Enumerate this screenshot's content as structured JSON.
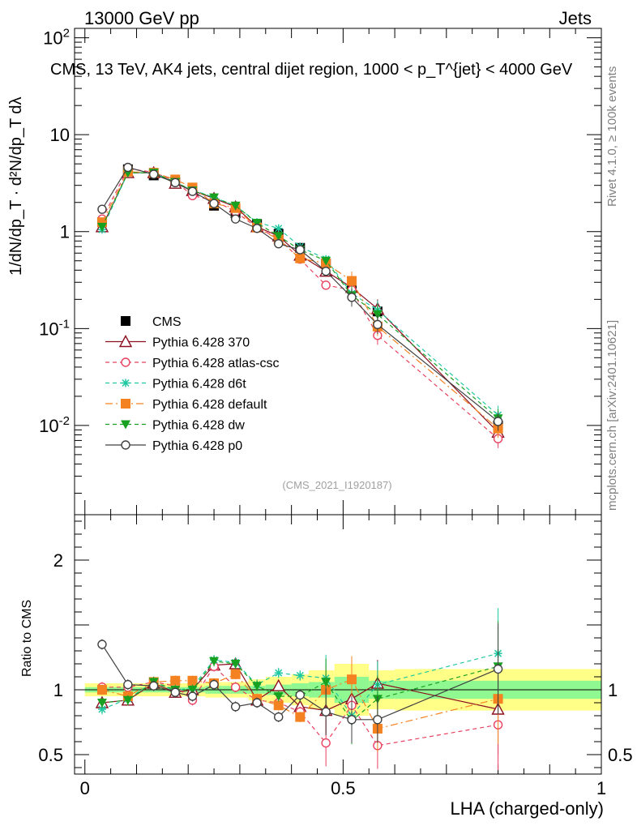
{
  "header": {
    "left": "13000 GeV pp",
    "right": "Jets"
  },
  "side_texts": {
    "rivet": "Rivet 4.1.0, ≥ 100k events",
    "mcplots": "mcplots.cern.ch [arXiv:2401.10621]"
  },
  "analysis_label": "(CMS_2021_I1920187)",
  "colors": {
    "CMS": "#000000",
    "370": "#8b0f1f",
    "atlas": "#e8405f",
    "d6t": "#1ec8a0",
    "default": "#f58220",
    "dw": "#18a020",
    "p0": "#404040",
    "band_yellow": "#ffff88",
    "band_green": "#90f890"
  },
  "chart_data": [
    {
      "type": "scatter",
      "title": "CMS, 13 TeV, AK4 jets, central dijet region, 1000 < p_T^{jet} < 4000 GeV",
      "ylabel": "1/dN/dp_T · d²N/dp_T dλ",
      "yscale": "log",
      "ylim": [
        0.0012,
        125
      ],
      "xlim": [
        -0.02,
        1.0
      ],
      "y_tick_labels": [
        "10^-2",
        "10^-1",
        "1",
        "10",
        "10^2"
      ],
      "x": [
        0.0333,
        0.0833,
        0.1333,
        0.175,
        0.2083,
        0.25,
        0.2917,
        0.3333,
        0.375,
        0.4167,
        0.4667,
        0.5167,
        0.5667,
        0.8
      ],
      "series": [
        {
          "name": "CMS",
          "key": "CMS",
          "marker": "square",
          "values": [
            1.25,
            4.4,
            3.8,
            3.25,
            2.65,
            1.85,
            1.55,
            1.2,
            0.95,
            0.68,
            0.47,
            0.29,
            0.15,
            0.01
          ]
        },
        {
          "name": "Pythia 6.428 370",
          "key": "370",
          "marker": "triangle",
          "dash": "",
          "values": [
            1.12,
            4.05,
            4.05,
            3.15,
            2.65,
            2.2,
            1.8,
            1.12,
            0.9,
            0.57,
            0.39,
            0.265,
            0.16,
            0.0085
          ]
        },
        {
          "name": "Pythia 6.428 atlas-csc",
          "key": "atlas",
          "marker": "circle",
          "dash": "5,4",
          "values": [
            1.35,
            4.45,
            4.1,
            3.3,
            2.35,
            2.1,
            1.6,
            1.1,
            0.85,
            0.52,
            0.28,
            0.25,
            0.085,
            0.0073
          ]
        },
        {
          "name": "Pythia 6.428 d6t",
          "key": "d6t",
          "marker": "star",
          "dash": "5,4",
          "values": [
            1.05,
            4.05,
            4.05,
            3.2,
            2.7,
            2.25,
            1.85,
            1.25,
            1.08,
            0.7,
            0.52,
            0.23,
            0.155,
            0.0128
          ]
        },
        {
          "name": "Pythia 6.428 default",
          "key": "default",
          "marker": "square",
          "dash": "9,4,2,4",
          "values": [
            1.25,
            4.15,
            4.05,
            3.45,
            2.85,
            1.95,
            1.75,
            1.1,
            0.83,
            0.53,
            0.47,
            0.31,
            0.105,
            0.0093
          ]
        },
        {
          "name": "Pythia 6.428 dw",
          "key": "dw",
          "marker": "triangle-down",
          "dash": "5,4",
          "values": [
            1.12,
            4.05,
            4.05,
            3.25,
            2.65,
            2.25,
            1.85,
            1.23,
            0.9,
            0.65,
            0.5,
            0.22,
            0.14,
            0.0118
          ]
        },
        {
          "name": "Pythia 6.428 p0",
          "key": "p0",
          "marker": "circle",
          "dash": "",
          "values": [
            1.7,
            4.6,
            3.9,
            3.2,
            2.6,
            1.95,
            1.35,
            1.08,
            0.75,
            0.65,
            0.39,
            0.21,
            0.11,
            0.011
          ]
        }
      ]
    },
    {
      "type": "scatter",
      "title": "Ratio to CMS",
      "xlabel": "LHA (charged-only)",
      "ylabel": "Ratio to CMS",
      "ylim": [
        0.35,
        2.35
      ],
      "y_tick_labels": [
        "0.5",
        "1",
        "2"
      ],
      "x_tick_labels": [
        "0",
        "0.5",
        "1"
      ],
      "xlim": [
        -0.02,
        1.0
      ],
      "bins": [
        [
          0.0,
          0.0667
        ],
        [
          0.0667,
          0.1
        ],
        [
          0.1,
          0.1667
        ],
        [
          0.1667,
          0.1833
        ],
        [
          0.1833,
          0.2333
        ],
        [
          0.2333,
          0.2667
        ],
        [
          0.2667,
          0.3167
        ],
        [
          0.3167,
          0.35
        ],
        [
          0.35,
          0.4
        ],
        [
          0.4,
          0.4333
        ],
        [
          0.4333,
          0.4833
        ],
        [
          0.4833,
          0.55
        ],
        [
          0.55,
          0.6
        ],
        [
          0.6,
          1.0
        ]
      ],
      "band_yellow": [
        0.05,
        0.05,
        0.05,
        0.05,
        0.05,
        0.06,
        0.06,
        0.08,
        0.1,
        0.12,
        0.15,
        0.2,
        0.15,
        0.16
      ],
      "band_green": [
        0.02,
        0.02,
        0.02,
        0.02,
        0.02,
        0.03,
        0.03,
        0.03,
        0.04,
        0.05,
        0.06,
        0.1,
        0.07,
        0.07
      ],
      "x": [
        0.0333,
        0.0833,
        0.1333,
        0.175,
        0.2083,
        0.25,
        0.2917,
        0.3333,
        0.375,
        0.4167,
        0.4667,
        0.5167,
        0.5667,
        0.8
      ],
      "series": [
        {
          "name": "Pythia 6.428 370",
          "key": "370",
          "marker": "triangle",
          "dash": "",
          "values": [
            0.9,
            0.92,
            1.05,
            0.98,
            1.0,
            1.19,
            1.2,
            0.92,
            1.03,
            0.87,
            0.84,
            0.93,
            1.05,
            0.85
          ]
        },
        {
          "name": "Pythia 6.428 atlas-csc",
          "key": "atlas",
          "marker": "circle",
          "dash": "5,4",
          "values": [
            1.02,
            1.02,
            1.06,
            1.03,
            0.92,
            1.18,
            1.02,
            0.92,
            0.9,
            0.83,
            0.59,
            0.88,
            0.57,
            0.73
          ]
        },
        {
          "name": "Pythia 6.428 d6t",
          "key": "d6t",
          "marker": "star",
          "dash": "5,4",
          "values": [
            0.85,
            0.93,
            1.06,
            0.99,
            1.02,
            1.23,
            1.21,
            1.04,
            1.13,
            1.11,
            1.09,
            0.8,
            1.04,
            1.28
          ]
        },
        {
          "name": "Pythia 6.428 default",
          "key": "default",
          "marker": "square",
          "dash": "9,4,2,4",
          "values": [
            1.0,
            0.95,
            1.06,
            1.07,
            1.07,
            1.05,
            1.12,
            0.93,
            0.88,
            0.79,
            1.0,
            1.08,
            0.7,
            0.93
          ]
        },
        {
          "name": "Pythia 6.428 dw",
          "key": "dw",
          "marker": "triangle-down",
          "dash": "5,4",
          "values": [
            0.9,
            0.92,
            1.06,
            1.0,
            1.0,
            1.22,
            1.2,
            1.03,
            0.95,
            0.95,
            1.06,
            0.76,
            0.93,
            1.18
          ]
        },
        {
          "name": "Pythia 6.428 p0",
          "key": "p0",
          "marker": "circle",
          "dash": "",
          "values": [
            1.35,
            1.04,
            1.03,
            0.98,
            0.95,
            1.04,
            0.87,
            0.9,
            0.79,
            0.96,
            0.83,
            0.77,
            0.77,
            1.16
          ]
        }
      ]
    }
  ],
  "legend": [
    "CMS",
    "Pythia 6.428 370",
    "Pythia 6.428 atlas-csc",
    "Pythia 6.428 d6t",
    "Pythia 6.428 default",
    "Pythia 6.428 dw",
    "Pythia 6.428 p0"
  ]
}
